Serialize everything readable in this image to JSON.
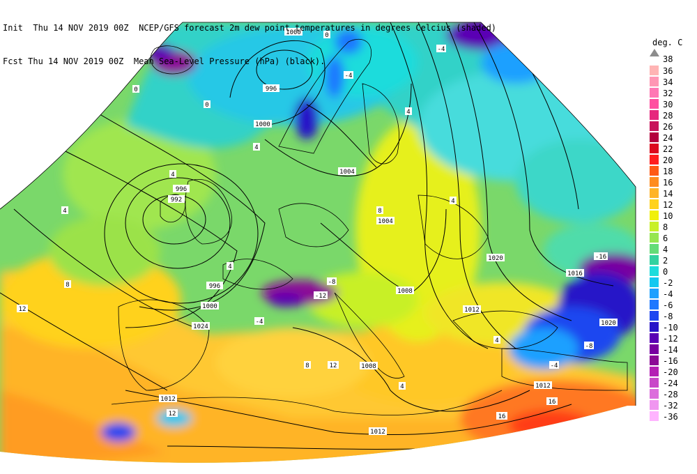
{
  "header": {
    "line1": "Init  Thu 14 NOV 2019 00Z  NCEP/GFS forecast 2m dew point temperatures in degrees Celcius (shaded)",
    "line2": "Fcst Thu 14 NOV 2019 00Z  Mean Sea-Level Pressure (hPa) (black)."
  },
  "legend": {
    "title": "deg. C",
    "top_label": "38",
    "items": [
      {
        "label": "36",
        "color": "#ffb4b4"
      },
      {
        "label": "34",
        "color": "#ff96b4"
      },
      {
        "label": "32",
        "color": "#ff78b4"
      },
      {
        "label": "30",
        "color": "#ff50a0"
      },
      {
        "label": "28",
        "color": "#e6287d"
      },
      {
        "label": "26",
        "color": "#c8145a"
      },
      {
        "label": "24",
        "color": "#b4003c"
      },
      {
        "label": "22",
        "color": "#dc0a1e"
      },
      {
        "label": "20",
        "color": "#ff1e1e"
      },
      {
        "label": "18",
        "color": "#ff5a14"
      },
      {
        "label": "16",
        "color": "#ff8c1e"
      },
      {
        "label": "14",
        "color": "#ffb428"
      },
      {
        "label": "12",
        "color": "#ffd21e"
      },
      {
        "label": "10",
        "color": "#f0f00a"
      },
      {
        "label": "8",
        "color": "#c8f028"
      },
      {
        "label": "6",
        "color": "#96e650"
      },
      {
        "label": "4",
        "color": "#64dc78"
      },
      {
        "label": "2",
        "color": "#32d2a0"
      },
      {
        "label": "0",
        "color": "#1edcdc"
      },
      {
        "label": "-2",
        "color": "#14c8f0"
      },
      {
        "label": "-4",
        "color": "#1ea0ff"
      },
      {
        "label": "-6",
        "color": "#1e78ff"
      },
      {
        "label": "-8",
        "color": "#1e46f0"
      },
      {
        "label": "-10",
        "color": "#2814c8"
      },
      {
        "label": "-12",
        "color": "#5a00b4"
      },
      {
        "label": "-14",
        "color": "#7800a0"
      },
      {
        "label": "-16",
        "color": "#8c0a96"
      },
      {
        "label": "-20",
        "color": "#b41eb4"
      },
      {
        "label": "-24",
        "color": "#c846c8"
      },
      {
        "label": "-28",
        "color": "#dc6edc"
      },
      {
        "label": "-32",
        "color": "#f096f0"
      },
      {
        "label": "-36",
        "color": "#ffb4ff"
      }
    ]
  },
  "isobar_labels": [
    "1000",
    "996",
    "1000",
    "996",
    "992",
    "1004",
    "1004",
    "1020",
    "1016",
    "1020",
    "1012",
    "1008",
    "996",
    "1000",
    "1024",
    "1008",
    "1012",
    "1012",
    "1012"
  ],
  "temp_labels": [
    "0",
    "0",
    "0",
    "4",
    "4",
    "4",
    "4",
    "4",
    "8",
    "8",
    "8",
    "12",
    "12",
    "12",
    "-4",
    "-4",
    "-8",
    "-12",
    "16",
    "16",
    "4",
    "-4",
    "-4",
    "-8",
    "-16",
    "4",
    "4"
  ]
}
